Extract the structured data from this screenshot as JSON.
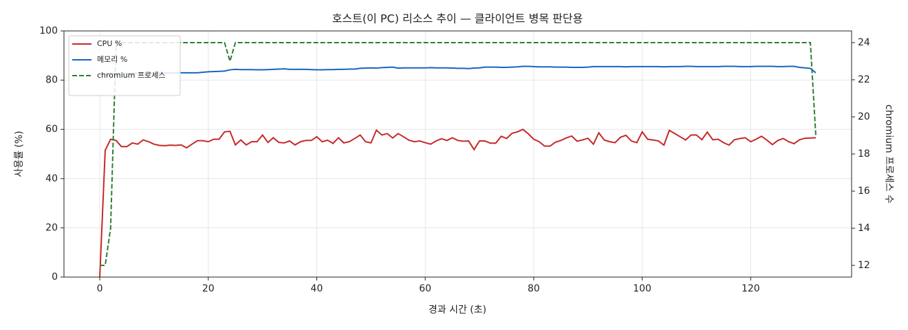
{
  "chart_data": {
    "type": "line",
    "title": "호스트(이 PC) 리소스 추이 — 클라이언트 병목 판단용",
    "x_label": "경과 시간 (초)",
    "y_label": "사용률 (%)",
    "y2_label": "chromium 프로세스 수",
    "x": [
      0,
      1,
      2,
      3,
      4,
      5,
      6,
      7,
      8,
      9,
      10,
      11,
      12,
      13,
      14,
      15,
      16,
      17,
      18,
      19,
      20,
      21,
      22,
      23,
      24,
      25,
      26,
      27,
      28,
      29,
      30,
      31,
      32,
      33,
      34,
      35,
      36,
      37,
      38,
      39,
      40,
      41,
      42,
      43,
      44,
      45,
      46,
      47,
      48,
      49,
      50,
      51,
      52,
      53,
      54,
      55,
      56,
      57,
      58,
      59,
      60,
      61,
      62,
      63,
      64,
      65,
      66,
      67,
      68,
      69,
      70,
      71,
      72,
      73,
      74,
      75,
      76,
      77,
      78,
      79,
      80,
      81,
      82,
      83,
      84,
      85,
      86,
      87,
      88,
      89,
      90,
      91,
      92,
      93,
      94,
      95,
      96,
      97,
      98,
      99,
      100,
      101,
      102,
      103,
      104,
      105,
      106,
      107,
      108,
      109,
      110,
      111,
      112,
      113,
      114,
      115,
      116,
      117,
      118,
      119,
      120,
      121,
      122,
      123,
      124,
      125,
      126,
      127,
      128,
      129,
      130,
      131,
      132
    ],
    "series": [
      {
        "name": "CPU %",
        "color": "#c62828",
        "linestyle": "solid",
        "values": [
          0,
          51.5,
          56,
          55.5,
          53,
          53,
          54.5,
          54,
          55.7,
          55,
          54,
          53.5,
          53.4,
          53.6,
          53.5,
          53.7,
          52.5,
          54,
          55.4,
          55.4,
          55,
          56,
          56,
          59,
          59.2,
          53.7,
          55.7,
          53.7,
          55,
          55,
          57.7,
          54.7,
          56.6,
          54.7,
          54.5,
          55.3,
          53.7,
          55,
          55.5,
          55.5,
          57,
          55,
          55.6,
          54.3,
          56.6,
          54.5,
          55,
          56.3,
          57.7,
          55,
          54.5,
          59.7,
          57.7,
          58.3,
          56.5,
          58.3,
          57,
          55.6,
          55,
          55.3,
          54.6,
          54,
          55.3,
          56.2,
          55.5,
          56.6,
          55.5,
          55.2,
          55.3,
          51.8,
          55.3,
          55.3,
          54.4,
          54.4,
          57.2,
          56.3,
          58.4,
          59,
          60,
          58.2,
          56,
          55,
          53.2,
          53.2,
          54.8,
          55.5,
          56.5,
          57.3,
          55.2,
          55.7,
          56.4,
          54,
          58.6,
          55.7,
          55,
          54.6,
          56.8,
          57.6,
          55.3,
          54.6,
          59,
          56,
          55.7,
          55.3,
          53.6,
          59.6,
          58.3,
          57,
          55.7,
          57.7,
          57.7,
          55.8,
          58.9,
          55.8,
          56,
          54.6,
          53.6,
          55.8,
          56.3,
          56.6,
          55,
          56,
          57.2,
          55.6,
          53.8,
          55.5,
          56.3,
          55,
          54.2,
          55.8,
          56.4,
          56.5,
          56.6
        ]
      },
      {
        "name": "메모리 %",
        "color": "#1565c0",
        "linestyle": "solid",
        "values": [
          82.5,
          82.6,
          82.6,
          82.7,
          82.7,
          82.7,
          82.8,
          82.8,
          82.8,
          82.8,
          82.8,
          82.9,
          82.9,
          82.9,
          83,
          83,
          83,
          83,
          83,
          83.2,
          83.4,
          83.5,
          83.6,
          83.7,
          84.2,
          84.4,
          84.3,
          84.3,
          84.3,
          84.2,
          84.2,
          84.3,
          84.4,
          84.5,
          84.6,
          84.4,
          84.4,
          84.4,
          84.4,
          84.3,
          84.2,
          84.2,
          84.3,
          84.3,
          84.4,
          84.4,
          84.5,
          84.5,
          84.8,
          84.9,
          85,
          84.9,
          85.1,
          85.2,
          85.3,
          84.9,
          85,
          85,
          85,
          85,
          85,
          85.1,
          85,
          85,
          85,
          84.9,
          84.8,
          84.8,
          84.7,
          84.9,
          85,
          85.3,
          85.3,
          85.3,
          85.2,
          85.2,
          85.3,
          85.4,
          85.6,
          85.6,
          85.5,
          85.4,
          85.4,
          85.4,
          85.3,
          85.3,
          85.3,
          85.2,
          85.2,
          85.2,
          85.3,
          85.5,
          85.5,
          85.5,
          85.5,
          85.5,
          85.5,
          85.4,
          85.5,
          85.5,
          85.5,
          85.5,
          85.5,
          85.5,
          85.4,
          85.5,
          85.5,
          85.5,
          85.6,
          85.6,
          85.5,
          85.5,
          85.5,
          85.5,
          85.5,
          85.6,
          85.6,
          85.6,
          85.5,
          85.5,
          85.5,
          85.6,
          85.6,
          85.6,
          85.6,
          85.5,
          85.5,
          85.6,
          85.6,
          85.2,
          85,
          84.8,
          83
        ]
      },
      {
        "name": "chromium 프로세스",
        "color": "#2e7d32",
        "linestyle": "dashed",
        "axis": "y2",
        "values": [
          12,
          12,
          14,
          24,
          24,
          24,
          24,
          24,
          24,
          24,
          24,
          24,
          24,
          24,
          24,
          24,
          24,
          24,
          24,
          24,
          24,
          24,
          24,
          24,
          23,
          24,
          24,
          24,
          24,
          24,
          24,
          24,
          24,
          24,
          24,
          24,
          24,
          24,
          24,
          24,
          24,
          24,
          24,
          24,
          24,
          24,
          24,
          24,
          24,
          24,
          24,
          24,
          24,
          24,
          24,
          24,
          24,
          24,
          24,
          24,
          24,
          24,
          24,
          24,
          24,
          24,
          24,
          24,
          24,
          24,
          24,
          24,
          24,
          24,
          24,
          24,
          24,
          24,
          24,
          24,
          24,
          24,
          24,
          24,
          24,
          24,
          24,
          24,
          24,
          24,
          24,
          24,
          24,
          24,
          24,
          24,
          24,
          24,
          24,
          24,
          24,
          24,
          24,
          24,
          24,
          24,
          24,
          24,
          24,
          24,
          24,
          24,
          24,
          24,
          24,
          24,
          24,
          24,
          24,
          24,
          24,
          24,
          24,
          24,
          24,
          24,
          24,
          24,
          24,
          24,
          24,
          24,
          19
        ]
      }
    ],
    "xlim": [
      -6.6,
      138.6
    ],
    "xticks": [
      0,
      20,
      40,
      60,
      80,
      100,
      120
    ],
    "ylim": [
      0,
      100
    ],
    "yticks": [
      0,
      20,
      40,
      60,
      80,
      100
    ],
    "y2lim": [
      11.37,
      24.63
    ],
    "y2ticks": [
      12,
      14,
      16,
      18,
      20,
      22,
      24
    ],
    "grid": true,
    "legend": "upper left"
  }
}
